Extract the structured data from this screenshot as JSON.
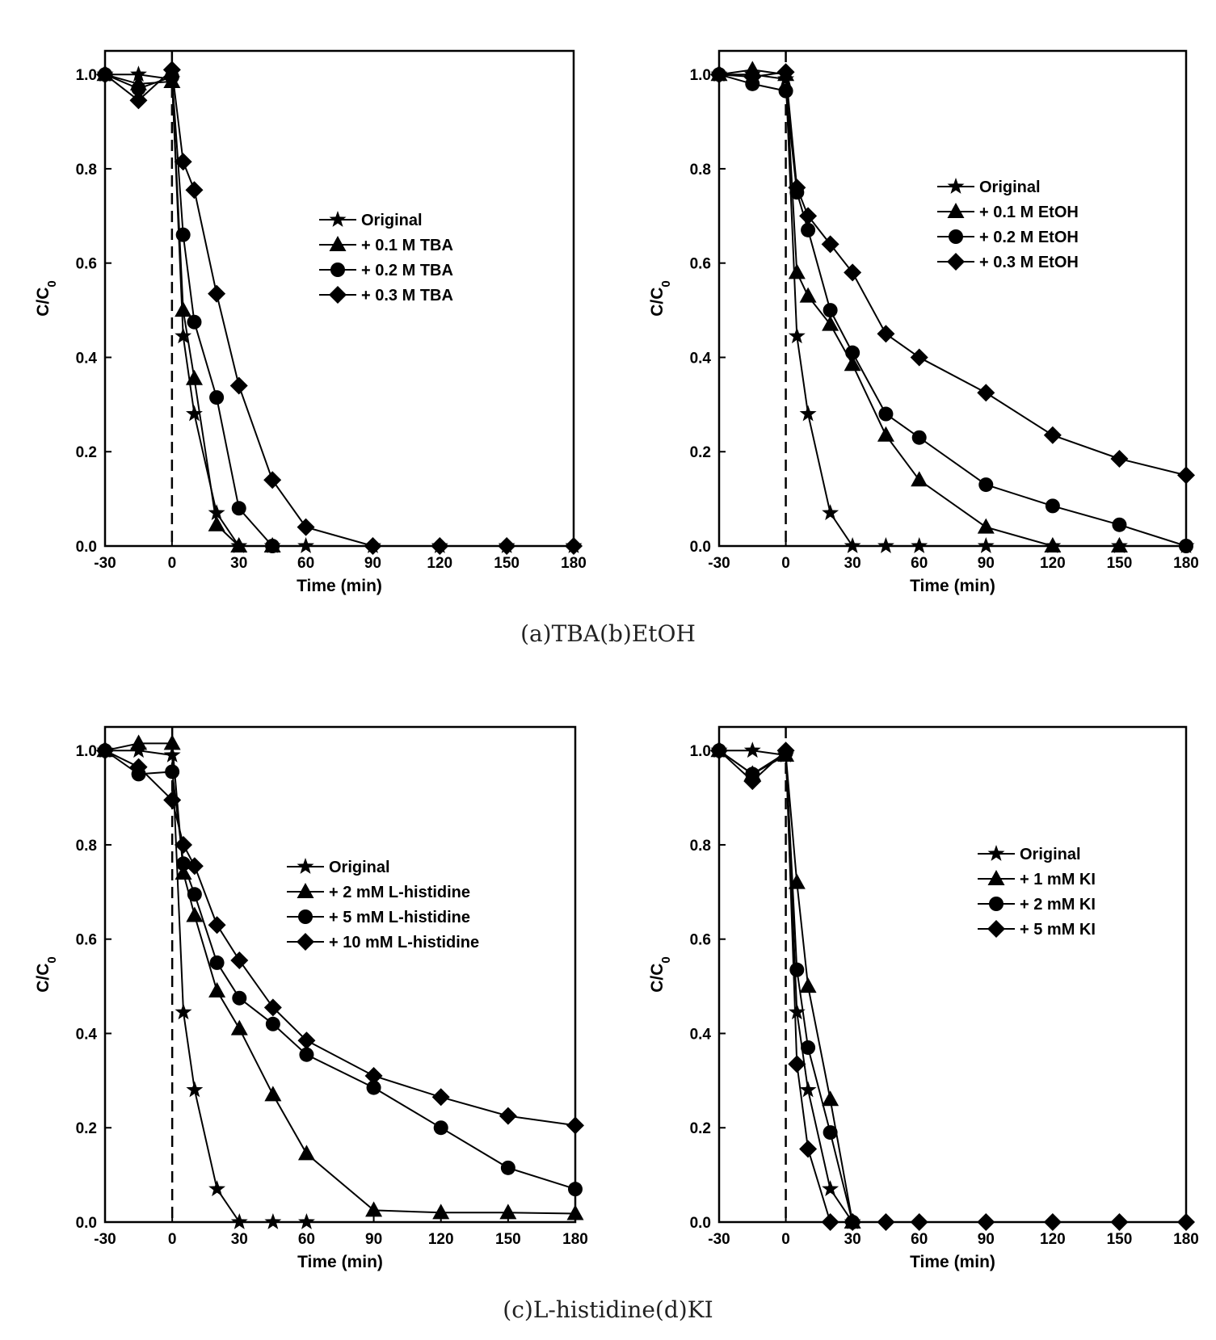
{
  "captions": {
    "top": "(a)TBA(b)EtOH",
    "bottom": "(c)L-histidine(d)KI"
  },
  "chart_data": [
    {
      "id": "a",
      "type": "line",
      "xlabel": "Time (min)",
      "ylabel": "C/C",
      "ylabel_sub": "0",
      "xlim": [
        -30,
        180
      ],
      "ylim": [
        0,
        1.05
      ],
      "xticks": [
        "-30",
        "0",
        "30",
        "60",
        "90",
        "120",
        "150",
        "180"
      ],
      "yticks": [
        "0.0",
        "0.2",
        "0.4",
        "0.6",
        "0.8",
        "1.0"
      ],
      "legend_position": "center",
      "reference_line_x": 0,
      "series": [
        {
          "name": "Original",
          "marker": "star",
          "x": [
            -30,
            -15,
            0,
            5,
            10,
            20,
            30,
            45,
            60,
            90,
            120,
            150,
            180
          ],
          "y": [
            1.0,
            1.0,
            0.99,
            0.445,
            0.28,
            0.07,
            0.0,
            0.0,
            0.0,
            0.0,
            0.0,
            0.0,
            0.0
          ]
        },
        {
          "name": "+ 0.1 M TBA",
          "marker": "triangle",
          "x": [
            -30,
            -15,
            0,
            5,
            10,
            20,
            30,
            45
          ],
          "y": [
            1.0,
            0.98,
            0.985,
            0.5,
            0.355,
            0.045,
            0.0,
            0.0
          ]
        },
        {
          "name": "+ 0.2 M TBA",
          "marker": "circle",
          "x": [
            -30,
            -15,
            0,
            5,
            10,
            20,
            30,
            45
          ],
          "y": [
            1.0,
            0.97,
            0.995,
            0.66,
            0.475,
            0.315,
            0.08,
            0.0
          ]
        },
        {
          "name": "+ 0.3 M TBA",
          "marker": "diamond",
          "x": [
            -30,
            -15,
            0,
            5,
            10,
            20,
            30,
            45,
            60,
            90,
            120,
            150,
            180
          ],
          "y": [
            1.0,
            0.945,
            1.01,
            0.815,
            0.755,
            0.535,
            0.34,
            0.14,
            0.04,
            0.0,
            0.0,
            0.0,
            0.0
          ]
        }
      ]
    },
    {
      "id": "b",
      "type": "line",
      "xlabel": "Time (min)",
      "ylabel": "C/C",
      "ylabel_sub": "0",
      "xlim": [
        -30,
        180
      ],
      "ylim": [
        0,
        1.05
      ],
      "xticks": [
        "-30",
        "0",
        "30",
        "60",
        "90",
        "120",
        "150",
        "180"
      ],
      "yticks": [
        "0.0",
        "0.2",
        "0.4",
        "0.6",
        "0.8",
        "1.0"
      ],
      "legend_position": "upper-right",
      "reference_line_x": 0,
      "series": [
        {
          "name": "Original",
          "marker": "star",
          "x": [
            -30,
            -15,
            0,
            5,
            10,
            20,
            30,
            45,
            60,
            90,
            120,
            150,
            180
          ],
          "y": [
            1.0,
            1.0,
            0.99,
            0.445,
            0.28,
            0.07,
            0.0,
            0.0,
            0.0,
            0.0,
            0.0,
            0.0,
            0.0
          ]
        },
        {
          "name": "+ 0.1 M EtOH",
          "marker": "triangle",
          "x": [
            -30,
            -15,
            0,
            5,
            10,
            20,
            30,
            45,
            60,
            90,
            120,
            150
          ],
          "y": [
            1.0,
            1.01,
            1.0,
            0.58,
            0.53,
            0.47,
            0.385,
            0.235,
            0.14,
            0.04,
            0.0,
            0.0
          ]
        },
        {
          "name": "+ 0.2 M EtOH",
          "marker": "circle",
          "x": [
            -30,
            -15,
            0,
            5,
            10,
            20,
            30,
            45,
            60,
            90,
            120,
            150,
            180
          ],
          "y": [
            1.0,
            0.98,
            0.965,
            0.75,
            0.67,
            0.5,
            0.41,
            0.28,
            0.23,
            0.13,
            0.085,
            0.045,
            0.0
          ]
        },
        {
          "name": "+ 0.3 M EtOH",
          "marker": "diamond",
          "x": [
            -30,
            -15,
            0,
            5,
            10,
            20,
            30,
            45,
            60,
            90,
            120,
            150,
            180
          ],
          "y": [
            1.0,
            0.995,
            1.005,
            0.76,
            0.7,
            0.64,
            0.58,
            0.45,
            0.4,
            0.325,
            0.235,
            0.185,
            0.15
          ]
        }
      ]
    },
    {
      "id": "c",
      "type": "line",
      "xlabel": "Time (min)",
      "ylabel": "C/C",
      "ylabel_sub": "0",
      "xlim": [
        -30,
        180
      ],
      "ylim": [
        0,
        1.05
      ],
      "xticks": [
        "-30",
        "0",
        "30",
        "60",
        "90",
        "120",
        "150",
        "180"
      ],
      "yticks": [
        "0.0",
        "0.2",
        "0.4",
        "0.6",
        "0.8",
        "1.0"
      ],
      "legend_position": "center",
      "reference_line_x": 0,
      "series": [
        {
          "name": "Original",
          "marker": "star",
          "x": [
            -30,
            -15,
            0,
            5,
            10,
            20,
            30,
            45,
            60
          ],
          "y": [
            1.0,
            1.0,
            0.99,
            0.445,
            0.28,
            0.07,
            0.0,
            0.0,
            0.0
          ]
        },
        {
          "name": "+ 2 mM L-histidine",
          "marker": "triangle",
          "x": [
            -30,
            -15,
            0,
            5,
            10,
            20,
            30,
            45,
            60,
            90,
            120,
            150,
            180
          ],
          "y": [
            1.0,
            1.015,
            1.015,
            0.74,
            0.65,
            0.49,
            0.41,
            0.27,
            0.145,
            0.025,
            0.02,
            0.02,
            0.018
          ]
        },
        {
          "name": "+ 5 mM L-histidine",
          "marker": "circle",
          "x": [
            -30,
            -15,
            0,
            5,
            10,
            20,
            30,
            45,
            60,
            90,
            120,
            150,
            180
          ],
          "y": [
            1.0,
            0.95,
            0.955,
            0.76,
            0.695,
            0.55,
            0.475,
            0.42,
            0.355,
            0.285,
            0.2,
            0.115,
            0.07
          ]
        },
        {
          "name": "+ 10 mM L-histidine",
          "marker": "diamond",
          "x": [
            -30,
            -15,
            0,
            5,
            10,
            20,
            30,
            45,
            60,
            90,
            120,
            150,
            180
          ],
          "y": [
            1.0,
            0.965,
            0.895,
            0.8,
            0.755,
            0.63,
            0.555,
            0.455,
            0.385,
            0.31,
            0.265,
            0.225,
            0.205
          ]
        }
      ]
    },
    {
      "id": "d",
      "type": "line",
      "xlabel": "Time (min)",
      "ylabel": "C/C",
      "ylabel_sub": "0",
      "xlim": [
        -30,
        180
      ],
      "ylim": [
        0,
        1.05
      ],
      "xticks": [
        "-30",
        "0",
        "30",
        "60",
        "90",
        "120",
        "150",
        "180"
      ],
      "yticks": [
        "0.0",
        "0.2",
        "0.4",
        "0.6",
        "0.8",
        "1.0"
      ],
      "legend_position": "upper-right",
      "reference_line_x": 0,
      "series": [
        {
          "name": "Original",
          "marker": "star",
          "x": [
            -30,
            -15,
            0,
            5,
            10,
            20,
            30
          ],
          "y": [
            1.0,
            1.0,
            0.99,
            0.445,
            0.28,
            0.07,
            0.0
          ]
        },
        {
          "name": "+ 1 mM KI",
          "marker": "triangle",
          "x": [
            -30,
            -15,
            0,
            5,
            10,
            20,
            30
          ],
          "y": [
            1.0,
            0.95,
            0.99,
            0.72,
            0.5,
            0.26,
            0.0
          ]
        },
        {
          "name": "+ 2 mM KI",
          "marker": "circle",
          "x": [
            -30,
            -15,
            0,
            5,
            10,
            20,
            30
          ],
          "y": [
            1.0,
            0.95,
            0.995,
            0.535,
            0.37,
            0.19,
            0.0
          ]
        },
        {
          "name": "+ 5 mM KI",
          "marker": "diamond",
          "x": [
            -30,
            -15,
            0,
            5,
            10,
            20,
            30,
            45,
            60,
            90,
            120,
            150,
            180
          ],
          "y": [
            1.0,
            0.935,
            1.0,
            0.335,
            0.155,
            0.0,
            0.0,
            0.0,
            0.0,
            0.0,
            0.0,
            0.0,
            0.0
          ]
        }
      ]
    }
  ]
}
